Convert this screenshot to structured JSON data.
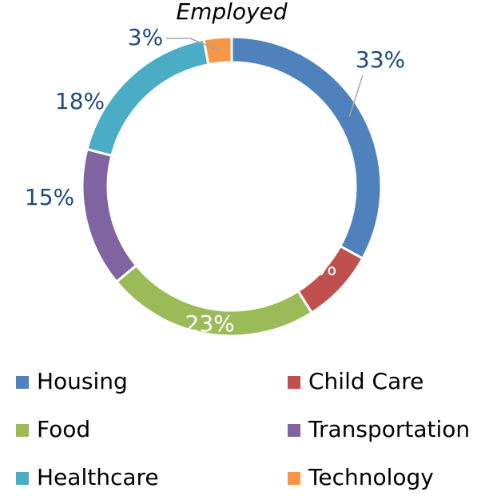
{
  "chart_data": {
    "type": "donut",
    "title": "Employed",
    "categories": [
      "Housing",
      "Child Care",
      "Food",
      "Transportation",
      "Healthcare",
      "Technology"
    ],
    "values": [
      33,
      8,
      23,
      15,
      18,
      3
    ],
    "value_labels": [
      "33%",
      "8%",
      "23%",
      "15%",
      "18%",
      "3%"
    ],
    "colors": [
      "#4f81bd",
      "#c0504d",
      "#9bbb59",
      "#8064a2",
      "#4bacc6",
      "#f79646"
    ]
  }
}
